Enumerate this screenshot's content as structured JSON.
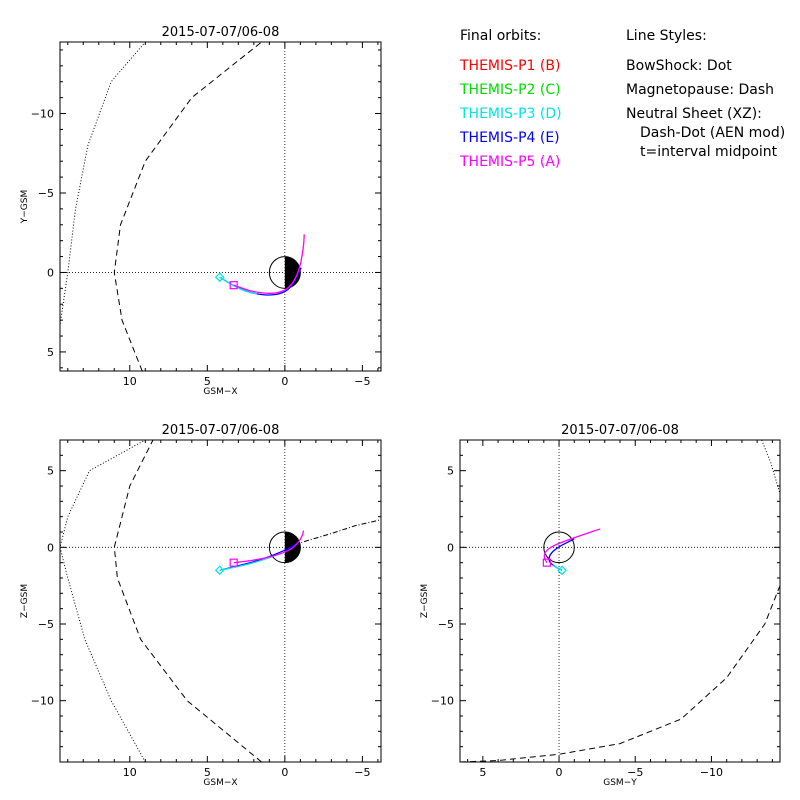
{
  "legend": {
    "orbits_heading": "Final orbits:",
    "styles_heading": "Line Styles:",
    "probes": [
      {
        "label": "THEMIS-P1 (B)",
        "color": "#ff0000"
      },
      {
        "label": "THEMIS-P2 (C)",
        "color": "#00dd00"
      },
      {
        "label": "THEMIS-P3 (D)",
        "color": "#00e5e5"
      },
      {
        "label": "THEMIS-P4 (E)",
        "color": "#0000ff"
      },
      {
        "label": "THEMIS-P5 (A)",
        "color": "#ff00ff"
      }
    ],
    "styles": [
      "BowShock: Dot",
      "Magnetopause: Dash",
      "Neutral Sheet (XZ):",
      "Dash-Dot (AEN mod)",
      "t=interval midpoint"
    ]
  },
  "chart_data": [
    {
      "type": "line",
      "title": "2015-07-07/06-08",
      "xlabel": "GSM-X",
      "ylabel": "Y-GSM",
      "xlim": [
        14.5,
        -6.2
      ],
      "ylim": [
        6.2,
        -14.5
      ],
      "xticks": [
        10,
        5,
        0,
        -5
      ],
      "yticks": [
        5,
        0,
        -5,
        -10
      ],
      "earth": true,
      "series": [
        {
          "name": "THEMIS-P4 (E)",
          "color": "#0000ff",
          "x": [
            4.2,
            3.2,
            2.0,
            0.8,
            0.0,
            -0.5,
            -0.9,
            -1.05
          ],
          "y": [
            0.3,
            0.9,
            1.35,
            1.45,
            1.25,
            0.8,
            0.0,
            -0.3
          ]
        },
        {
          "name": "THEMIS-P3 (D)",
          "color": "#00e5e5",
          "x": [
            4.2,
            3.3,
            2.5,
            1.8
          ],
          "y": [
            0.3,
            0.85,
            1.2,
            1.35
          ]
        },
        {
          "name": "THEMIS-P5 (A)",
          "color": "#ff00ff",
          "x": [
            3.3,
            2.0,
            0.6,
            -0.3,
            -0.9,
            -1.2,
            -1.25
          ],
          "y": [
            0.8,
            1.25,
            1.35,
            1.0,
            0.0,
            -1.5,
            -2.4
          ]
        }
      ],
      "bow_shock": {
        "x": [
          15.0,
          14.6,
          14.0,
          13.5,
          12.7,
          11.2,
          9.0
        ],
        "y": [
          6.2,
          4.0,
          0.0,
          -4.0,
          -8.0,
          -12.0,
          -14.5
        ]
      },
      "magnetopause": {
        "x": [
          9.2,
          10.5,
          11.0,
          10.6,
          9.0,
          6.0,
          1.5
        ],
        "y": [
          6.2,
          3.0,
          0.0,
          -3.0,
          -7.0,
          -11.0,
          -14.5
        ]
      },
      "markers": [
        {
          "shape": "diamond",
          "color": "#00e5e5",
          "x": 4.2,
          "y": 0.3
        },
        {
          "shape": "square",
          "color": "#ff00ff",
          "x": 3.3,
          "y": 0.8
        }
      ]
    },
    {
      "type": "line",
      "title": "2015-07-07/06-08",
      "xlabel": "GSM-X",
      "ylabel": "Z-GSM",
      "xlim": [
        14.5,
        -6.2
      ],
      "ylim": [
        -14.0,
        7.0
      ],
      "xticks": [
        10,
        5,
        0,
        -5
      ],
      "yticks": [
        5,
        0,
        -5,
        -10
      ],
      "earth": true,
      "series": [
        {
          "name": "THEMIS-P4 (E)",
          "color": "#0000ff",
          "x": [
            4.2,
            3.0,
            1.8,
            0.6,
            -0.3,
            -0.9
          ],
          "y": [
            -1.5,
            -1.2,
            -0.9,
            -0.45,
            -0.05,
            0.35
          ]
        },
        {
          "name": "THEMIS-P3 (D)",
          "color": "#00e5e5",
          "x": [
            4.2,
            3.0,
            1.8,
            0.8
          ],
          "y": [
            -1.5,
            -1.25,
            -0.95,
            -0.6
          ]
        },
        {
          "name": "THEMIS-P5 (A)",
          "color": "#ff00ff",
          "x": [
            3.3,
            2.0,
            0.6,
            -0.4,
            -0.9,
            -1.15,
            -1.2
          ],
          "y": [
            -1.0,
            -0.85,
            -0.55,
            -0.15,
            0.35,
            0.8,
            1.1
          ]
        }
      ],
      "bow_shock": {
        "x": [
          9.0,
          11.2,
          12.9,
          14.0,
          14.5,
          14.0,
          12.6,
          9.0
        ],
        "y": [
          -14.0,
          -10.0,
          -6.0,
          -2.0,
          0.0,
          2.0,
          5.0,
          7.0
        ]
      },
      "magnetopause": {
        "x": [
          1.5,
          6.3,
          9.3,
          10.8,
          11.0,
          10.0,
          8.5
        ],
        "y": [
          -14.0,
          -10.0,
          -6.0,
          -2.0,
          0.0,
          4.0,
          7.0
        ]
      },
      "neutral_sheet": {
        "x": [
          0.0,
          -1.5,
          -3.0,
          -4.5,
          -6.2
        ],
        "y": [
          0.0,
          0.45,
          0.9,
          1.4,
          1.8
        ]
      },
      "markers": [
        {
          "shape": "diamond",
          "color": "#00e5e5",
          "x": 4.2,
          "y": -1.5
        },
        {
          "shape": "square",
          "color": "#ff00ff",
          "x": 3.3,
          "y": -1.0
        }
      ]
    },
    {
      "type": "line",
      "title": "2015-07-07/06-08",
      "xlabel": "GSM-Y",
      "ylabel": "Z-GSM",
      "xlim": [
        6.5,
        -14.5
      ],
      "ylim": [
        -14.0,
        7.0
      ],
      "xticks": [
        5,
        0,
        -5,
        -10
      ],
      "yticks": [
        5,
        0,
        -5,
        -10
      ],
      "earth": true,
      "earth_outline_only": true,
      "series": [
        {
          "name": "THEMIS-P4 (E)",
          "color": "#0000ff",
          "x": [
            -0.2,
            0.3,
            0.7,
            0.6,
            0.1,
            -0.5,
            -1.0
          ],
          "y": [
            -1.5,
            -1.25,
            -0.9,
            -0.45,
            0.0,
            0.3,
            0.55
          ]
        },
        {
          "name": "THEMIS-P3 (D)",
          "color": "#00e5e5",
          "x": [
            -0.2,
            0.2,
            0.4
          ],
          "y": [
            -1.5,
            -1.3,
            -1.1
          ]
        },
        {
          "name": "THEMIS-P5 (A)",
          "color": "#ff00ff",
          "x": [
            0.8,
            1.0,
            0.9,
            0.4,
            -0.5,
            -1.5,
            -2.7
          ],
          "y": [
            -1.0,
            -0.65,
            -0.25,
            0.1,
            0.45,
            0.8,
            1.2
          ]
        }
      ],
      "magnetopause": {
        "x": [
          6.5,
          4.0,
          0.0,
          -4.0,
          -8.0,
          -11.0,
          -13.5,
          -14.5
        ],
        "y": [
          -14.0,
          -13.9,
          -13.5,
          -12.8,
          -11.2,
          -8.5,
          -5.0,
          -2.5
        ]
      },
      "bow_shock": {
        "x": [
          -13.3,
          -13.9,
          -14.5
        ],
        "y": [
          7.0,
          5.5,
          3.5
        ]
      },
      "markers": [
        {
          "shape": "diamond",
          "color": "#00e5e5",
          "x": -0.2,
          "y": -1.5
        },
        {
          "shape": "square",
          "color": "#ff00ff",
          "x": 0.8,
          "y": -1.0
        }
      ]
    }
  ]
}
